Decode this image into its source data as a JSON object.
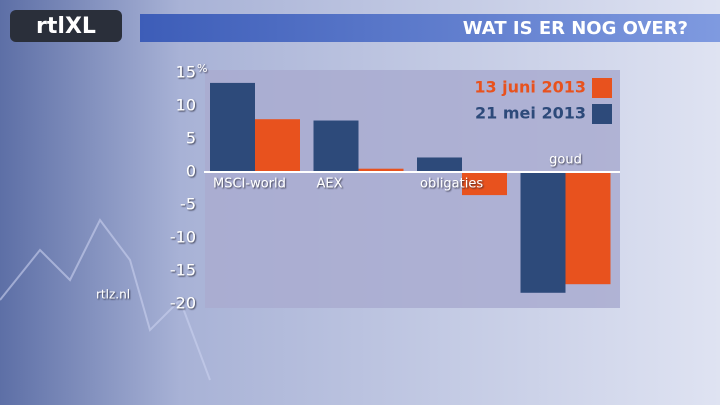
{
  "chart_data": {
    "type": "bar",
    "title": "WAT IS ER NOG OVER?",
    "y_unit": "%",
    "categories": [
      "MSCI-world",
      "AEX",
      "obligaties",
      "goud"
    ],
    "series": [
      {
        "name": "21 mei 2013",
        "color": "#2d4a7a",
        "values": [
          13.5,
          7.8,
          2.2,
          -18.3
        ]
      },
      {
        "name": "13 juni 2013",
        "color": "#e8521e",
        "values": [
          8,
          0.5,
          -3.5,
          -17
        ]
      }
    ],
    "ylim": [
      -20,
      15
    ],
    "yticks": [
      -20,
      -15,
      -10,
      -5,
      0,
      5,
      10,
      15
    ]
  },
  "logo": "rtlXL",
  "website": "rtlz.nl"
}
